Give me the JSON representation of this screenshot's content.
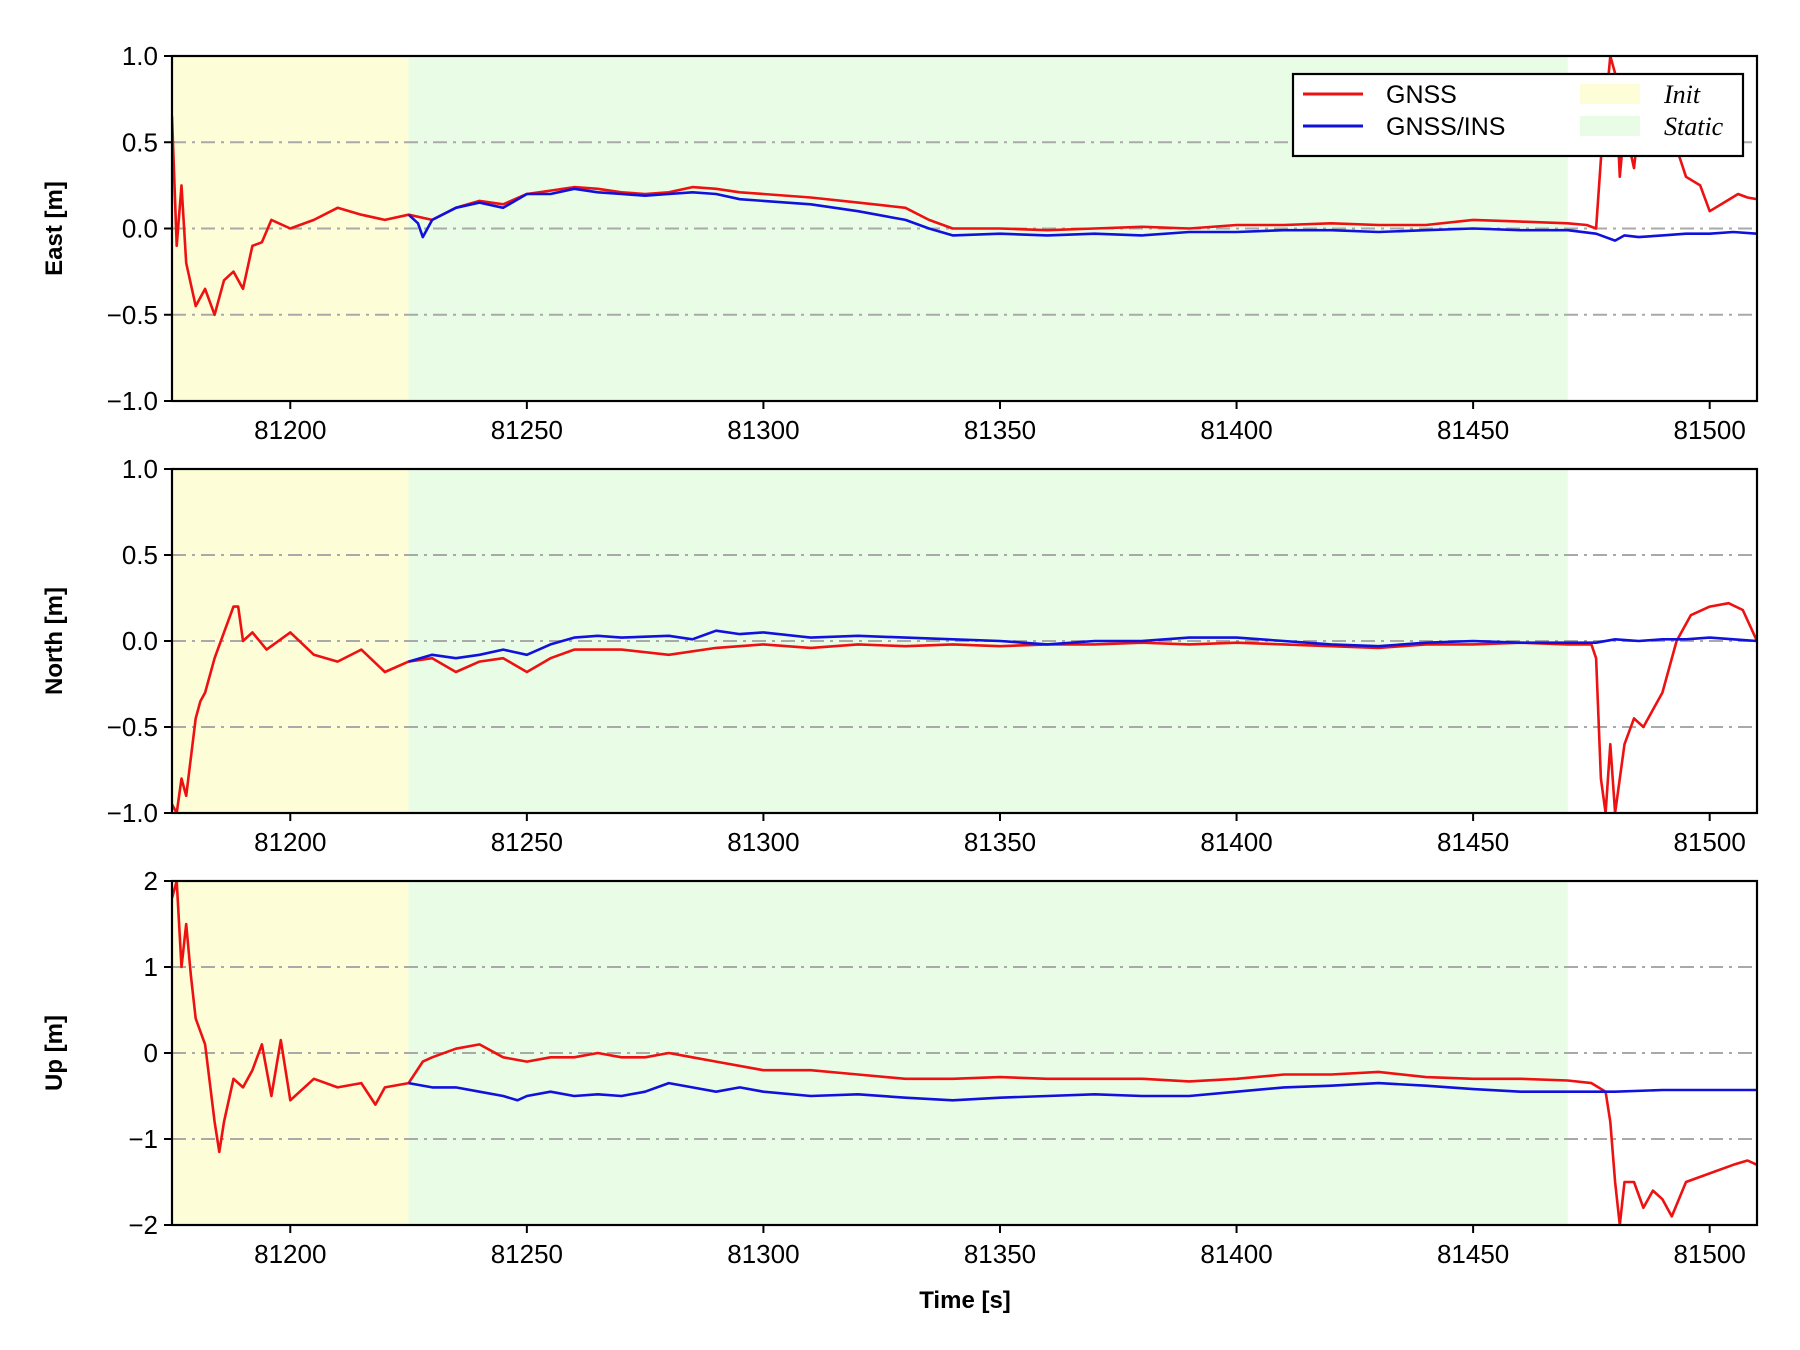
{
  "colors": {
    "gnss": "#ee1111",
    "gnss_ins": "#1111dd",
    "init_band": "#fdfdd8",
    "static_band": "#e9fde6",
    "grid": "#a9a9a9"
  },
  "legend": {
    "gnss": "GNSS",
    "gnss_ins": "GNSS/INS",
    "init": "Init",
    "static": "Static"
  },
  "xlabel": "Time [s]",
  "chart_data": [
    {
      "type": "line",
      "ylabel": "East [m]",
      "xlim": [
        81175,
        81510
      ],
      "ylim": [
        -1.0,
        1.0
      ],
      "xticks": [
        "81200",
        "81250",
        "81300",
        "81350",
        "81400",
        "81450",
        "81500"
      ],
      "yticks": [
        "−1.0",
        "−0.5",
        "0.0",
        "0.5",
        "1.0"
      ],
      "ytick_values": [
        -1.0,
        -0.5,
        0.0,
        0.5,
        1.0
      ],
      "grid_values": [
        -0.5,
        0.0,
        0.5
      ],
      "bands": [
        {
          "name": "Init",
          "x": [
            81175,
            81225
          ]
        },
        {
          "name": "Static",
          "x": [
            81225,
            81470
          ]
        }
      ],
      "series": [
        {
          "name": "GNSS",
          "x": [
            81175,
            81176,
            81177,
            81178,
            81180,
            81182,
            81184,
            81186,
            81188,
            81190,
            81192,
            81194,
            81196,
            81200,
            81205,
            81210,
            81215,
            81220,
            81225,
            81230,
            81235,
            81240,
            81245,
            81250,
            81255,
            81260,
            81265,
            81270,
            81275,
            81280,
            81285,
            81290,
            81295,
            81300,
            81310,
            81320,
            81330,
            81335,
            81340,
            81350,
            81360,
            81370,
            81380,
            81390,
            81400,
            81410,
            81420,
            81430,
            81440,
            81450,
            81460,
            81470,
            81474,
            81476,
            81477,
            81478,
            81479,
            81480,
            81481,
            81482,
            81484,
            81486,
            81488,
            81490,
            81492,
            81495,
            81498,
            81500,
            81503,
            81506,
            81508,
            81510
          ],
          "y": [
            0.65,
            -0.1,
            0.25,
            -0.2,
            -0.45,
            -0.35,
            -0.5,
            -0.3,
            -0.25,
            -0.35,
            -0.1,
            -0.08,
            0.05,
            0.0,
            0.05,
            0.12,
            0.08,
            0.05,
            0.08,
            0.05,
            0.12,
            0.16,
            0.14,
            0.2,
            0.22,
            0.24,
            0.23,
            0.21,
            0.2,
            0.21,
            0.24,
            0.23,
            0.21,
            0.2,
            0.18,
            0.15,
            0.12,
            0.05,
            0.0,
            0.0,
            -0.01,
            0.0,
            0.01,
            0.0,
            0.02,
            0.02,
            0.03,
            0.02,
            0.02,
            0.05,
            0.04,
            0.03,
            0.02,
            0.0,
            0.4,
            0.7,
            1.0,
            0.9,
            0.3,
            0.6,
            0.35,
            0.85,
            0.5,
            0.6,
            0.55,
            0.3,
            0.25,
            0.1,
            0.15,
            0.2,
            0.18,
            0.17
          ]
        },
        {
          "name": "GNSS/INS",
          "x": [
            81225,
            81227,
            81228,
            81230,
            81235,
            81240,
            81245,
            81250,
            81255,
            81260,
            81265,
            81270,
            81275,
            81280,
            81285,
            81290,
            81295,
            81300,
            81310,
            81320,
            81330,
            81335,
            81340,
            81350,
            81360,
            81370,
            81380,
            81390,
            81400,
            81410,
            81420,
            81430,
            81440,
            81450,
            81460,
            81470,
            81476,
            81480,
            81482,
            81485,
            81490,
            81495,
            81500,
            81505,
            81510
          ],
          "y": [
            0.08,
            0.03,
            -0.05,
            0.05,
            0.12,
            0.15,
            0.12,
            0.2,
            0.2,
            0.23,
            0.21,
            0.2,
            0.19,
            0.2,
            0.21,
            0.2,
            0.17,
            0.16,
            0.14,
            0.1,
            0.05,
            0.0,
            -0.04,
            -0.03,
            -0.04,
            -0.03,
            -0.04,
            -0.02,
            -0.02,
            -0.01,
            -0.01,
            -0.02,
            -0.01,
            0.0,
            -0.01,
            -0.01,
            -0.03,
            -0.07,
            -0.04,
            -0.05,
            -0.04,
            -0.03,
            -0.03,
            -0.02,
            -0.03
          ]
        }
      ]
    },
    {
      "type": "line",
      "ylabel": "North [m]",
      "xlim": [
        81175,
        81510
      ],
      "ylim": [
        -1.0,
        1.0
      ],
      "xticks": [
        "81200",
        "81250",
        "81300",
        "81350",
        "81400",
        "81450",
        "81500"
      ],
      "yticks": [
        "−1.0",
        "−0.5",
        "0.0",
        "0.5",
        "1.0"
      ],
      "ytick_values": [
        -1.0,
        -0.5,
        0.0,
        0.5,
        1.0
      ],
      "grid_values": [
        -0.5,
        0.0,
        0.5
      ],
      "bands": [
        {
          "name": "Init",
          "x": [
            81175,
            81225
          ]
        },
        {
          "name": "Static",
          "x": [
            81225,
            81470
          ]
        }
      ],
      "series": [
        {
          "name": "GNSS",
          "x": [
            81175,
            81176,
            81177,
            81178,
            81180,
            81181,
            81182,
            81184,
            81186,
            81188,
            81189,
            81190,
            81192,
            81195,
            81200,
            81205,
            81210,
            81215,
            81220,
            81225,
            81230,
            81235,
            81240,
            81245,
            81250,
            81255,
            81260,
            81270,
            81280,
            81290,
            81300,
            81310,
            81320,
            81330,
            81340,
            81350,
            81360,
            81370,
            81380,
            81390,
            81400,
            81410,
            81420,
            81430,
            81440,
            81450,
            81460,
            81470,
            81475,
            81476,
            81477,
            81478,
            81479,
            81480,
            81481,
            81482,
            81484,
            81486,
            81488,
            81490,
            81493,
            81496,
            81500,
            81504,
            81507,
            81510
          ],
          "y": [
            -0.95,
            -1.0,
            -0.8,
            -0.9,
            -0.45,
            -0.35,
            -0.3,
            -0.1,
            0.05,
            0.2,
            0.2,
            0.0,
            0.05,
            -0.05,
            0.05,
            -0.08,
            -0.12,
            -0.05,
            -0.18,
            -0.12,
            -0.1,
            -0.18,
            -0.12,
            -0.1,
            -0.18,
            -0.1,
            -0.05,
            -0.05,
            -0.08,
            -0.04,
            -0.02,
            -0.04,
            -0.02,
            -0.03,
            -0.02,
            -0.03,
            -0.02,
            -0.02,
            -0.01,
            -0.02,
            -0.01,
            -0.02,
            -0.03,
            -0.04,
            -0.02,
            -0.02,
            -0.01,
            -0.02,
            -0.02,
            -0.1,
            -0.8,
            -1.0,
            -0.6,
            -1.0,
            -0.8,
            -0.6,
            -0.45,
            -0.5,
            -0.4,
            -0.3,
            0.0,
            0.15,
            0.2,
            0.22,
            0.18,
            0.0
          ]
        },
        {
          "name": "GNSS/INS",
          "x": [
            81225,
            81230,
            81235,
            81240,
            81245,
            81250,
            81255,
            81260,
            81265,
            81270,
            81280,
            81285,
            81290,
            81295,
            81300,
            81310,
            81320,
            81330,
            81340,
            81350,
            81360,
            81370,
            81380,
            81390,
            81400,
            81410,
            81420,
            81430,
            81440,
            81450,
            81460,
            81470,
            81476,
            81480,
            81485,
            81490,
            81495,
            81500,
            81505,
            81510
          ],
          "y": [
            -0.12,
            -0.08,
            -0.1,
            -0.08,
            -0.05,
            -0.08,
            -0.02,
            0.02,
            0.03,
            0.02,
            0.03,
            0.01,
            0.06,
            0.04,
            0.05,
            0.02,
            0.03,
            0.02,
            0.01,
            0.0,
            -0.02,
            0.0,
            0.0,
            0.02,
            0.02,
            0.0,
            -0.02,
            -0.03,
            -0.01,
            0.0,
            -0.01,
            -0.01,
            -0.01,
            0.01,
            0.0,
            0.01,
            0.01,
            0.02,
            0.01,
            0.0
          ]
        }
      ]
    },
    {
      "type": "line",
      "ylabel": "Up [m]",
      "xlim": [
        81175,
        81510
      ],
      "ylim": [
        -2.0,
        2.0
      ],
      "xticks": [
        "81200",
        "81250",
        "81300",
        "81350",
        "81400",
        "81450",
        "81500"
      ],
      "yticks": [
        "−2",
        "−1",
        "0",
        "1",
        "2"
      ],
      "ytick_values": [
        -2,
        -1,
        0,
        1,
        2
      ],
      "grid_values": [
        -1,
        0,
        1
      ],
      "bands": [
        {
          "name": "Init",
          "x": [
            81175,
            81225
          ]
        },
        {
          "name": "Static",
          "x": [
            81225,
            81470
          ]
        }
      ],
      "series": [
        {
          "name": "GNSS",
          "x": [
            81175,
            81176,
            81177,
            81178,
            81179,
            81180,
            81182,
            81184,
            81185,
            81186,
            81188,
            81190,
            81192,
            81194,
            81196,
            81198,
            81200,
            81205,
            81210,
            81215,
            81218,
            81220,
            81225,
            81228,
            81230,
            81235,
            81240,
            81245,
            81250,
            81255,
            81260,
            81265,
            81270,
            81275,
            81280,
            81285,
            81290,
            81300,
            81310,
            81320,
            81330,
            81340,
            81350,
            81360,
            81370,
            81380,
            81390,
            81400,
            81410,
            81420,
            81430,
            81440,
            81450,
            81460,
            81470,
            81475,
            81478,
            81479,
            81480,
            81481,
            81482,
            81484,
            81486,
            81488,
            81490,
            81492,
            81495,
            81500,
            81505,
            81508,
            81510
          ],
          "y": [
            1.8,
            2.0,
            1.0,
            1.5,
            0.9,
            0.4,
            0.1,
            -0.8,
            -1.15,
            -0.8,
            -0.3,
            -0.4,
            -0.2,
            0.1,
            -0.5,
            0.15,
            -0.55,
            -0.3,
            -0.4,
            -0.35,
            -0.6,
            -0.4,
            -0.35,
            -0.1,
            -0.05,
            0.05,
            0.1,
            -0.05,
            -0.1,
            -0.05,
            -0.05,
            0.0,
            -0.05,
            -0.05,
            0.0,
            -0.05,
            -0.1,
            -0.2,
            -0.2,
            -0.25,
            -0.3,
            -0.3,
            -0.28,
            -0.3,
            -0.3,
            -0.3,
            -0.33,
            -0.3,
            -0.25,
            -0.25,
            -0.22,
            -0.28,
            -0.3,
            -0.3,
            -0.32,
            -0.35,
            -0.45,
            -0.8,
            -1.5,
            -2.0,
            -1.5,
            -1.5,
            -1.8,
            -1.6,
            -1.7,
            -1.9,
            -1.5,
            -1.4,
            -1.3,
            -1.25,
            -1.3
          ]
        },
        {
          "name": "GNSS/INS",
          "x": [
            81225,
            81230,
            81235,
            81240,
            81245,
            81248,
            81250,
            81255,
            81260,
            81265,
            81270,
            81275,
            81280,
            81285,
            81290,
            81295,
            81300,
            81310,
            81320,
            81330,
            81340,
            81350,
            81360,
            81370,
            81380,
            81390,
            81400,
            81410,
            81420,
            81430,
            81440,
            81450,
            81460,
            81470,
            81480,
            81490,
            81500,
            81510
          ],
          "y": [
            -0.35,
            -0.4,
            -0.4,
            -0.45,
            -0.5,
            -0.55,
            -0.5,
            -0.45,
            -0.5,
            -0.48,
            -0.5,
            -0.45,
            -0.35,
            -0.4,
            -0.45,
            -0.4,
            -0.45,
            -0.5,
            -0.48,
            -0.52,
            -0.55,
            -0.52,
            -0.5,
            -0.48,
            -0.5,
            -0.5,
            -0.45,
            -0.4,
            -0.38,
            -0.35,
            -0.38,
            -0.42,
            -0.45,
            -0.45,
            -0.45,
            -0.43,
            -0.43,
            -0.43
          ]
        }
      ]
    }
  ]
}
